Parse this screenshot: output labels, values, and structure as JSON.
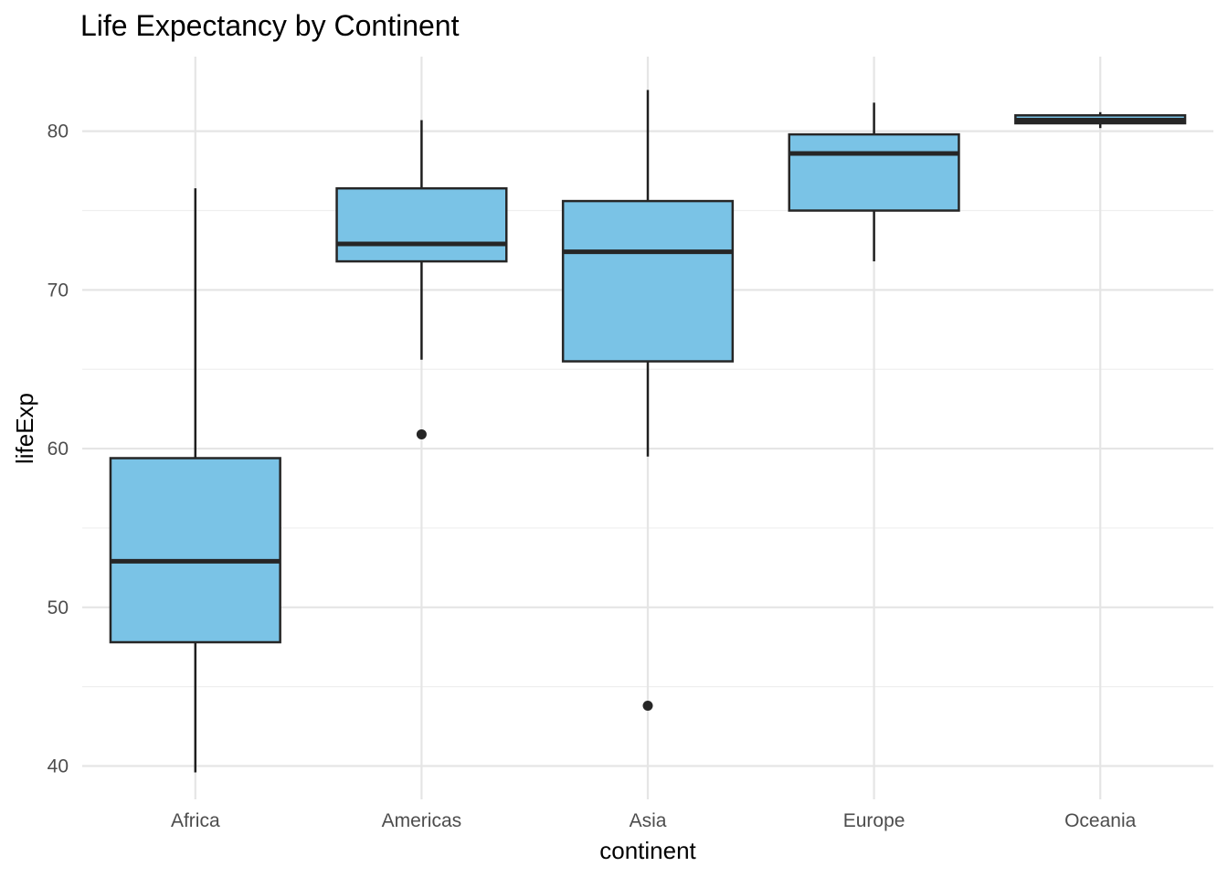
{
  "chart_data": {
    "type": "boxplot",
    "title": "Life Expectancy by Continent",
    "xlabel": "continent",
    "ylabel": "lifeExp",
    "ylim": [
      37.9,
      84.7
    ],
    "yticks": [
      40,
      50,
      60,
      70,
      80
    ],
    "grid": true,
    "legend": "none",
    "fill_color": "#7ac3e6",
    "line_color": "#262626",
    "categories": [
      "Africa",
      "Americas",
      "Asia",
      "Europe",
      "Oceania"
    ],
    "boxes": [
      {
        "category": "Africa",
        "min": 39.6,
        "q1": 47.8,
        "median": 52.9,
        "q3": 59.4,
        "max": 76.4,
        "outliers": []
      },
      {
        "category": "Americas",
        "min": 65.6,
        "q1": 71.8,
        "median": 72.9,
        "q3": 76.4,
        "max": 80.7,
        "outliers": [
          60.9
        ]
      },
      {
        "category": "Asia",
        "min": 59.5,
        "q1": 65.5,
        "median": 72.4,
        "q3": 75.6,
        "max": 82.6,
        "outliers": [
          43.8
        ]
      },
      {
        "category": "Europe",
        "min": 71.8,
        "q1": 75.0,
        "median": 78.6,
        "q3": 79.8,
        "max": 81.8,
        "outliers": []
      },
      {
        "category": "Oceania",
        "min": 80.2,
        "q1": 80.5,
        "median": 80.7,
        "q3": 81.0,
        "max": 81.2,
        "outliers": []
      }
    ]
  }
}
